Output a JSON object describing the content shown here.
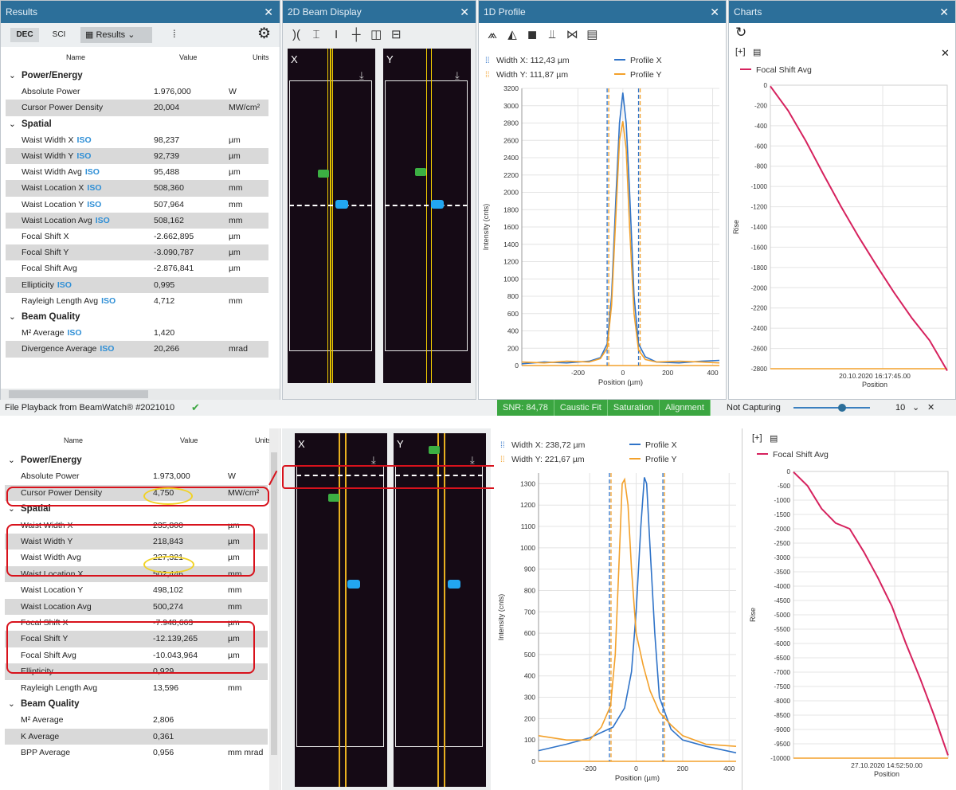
{
  "top": {
    "panels": {
      "results": "Results",
      "beam2d": "2D Beam Display",
      "profile1d": "1D Profile",
      "charts": "Charts"
    },
    "results_toolbar": {
      "dec": "DEC",
      "sci": "SCI",
      "results": "Results"
    },
    "columns": {
      "name": "Name",
      "value": "Value",
      "units": "Units"
    },
    "rows": [
      {
        "type": "section",
        "name": "Power/Energy"
      },
      {
        "type": "row",
        "name": "Absolute Power",
        "value": "1.976,000",
        "unit": "W",
        "iso": false
      },
      {
        "type": "row",
        "name": "Cursor Power Density",
        "value": "20,004",
        "unit": "MW/cm²",
        "iso": false
      },
      {
        "type": "section",
        "name": "Spatial"
      },
      {
        "type": "row",
        "name": "Waist Width X",
        "value": "98,237",
        "unit": "µm",
        "iso": true
      },
      {
        "type": "row",
        "name": "Waist Width Y",
        "value": "92,739",
        "unit": "µm",
        "iso": true
      },
      {
        "type": "row",
        "name": "Waist Width Avg",
        "value": "95,488",
        "unit": "µm",
        "iso": true
      },
      {
        "type": "row",
        "name": "Waist Location X",
        "value": "508,360",
        "unit": "mm",
        "iso": true
      },
      {
        "type": "row",
        "name": "Waist Location Y",
        "value": "507,964",
        "unit": "mm",
        "iso": true
      },
      {
        "type": "row",
        "name": "Waist Location Avg",
        "value": "508,162",
        "unit": "mm",
        "iso": true
      },
      {
        "type": "row",
        "name": "Focal Shift X",
        "value": "-2.662,895",
        "unit": "µm",
        "iso": false
      },
      {
        "type": "row",
        "name": "Focal Shift Y",
        "value": "-3.090,787",
        "unit": "µm",
        "iso": false
      },
      {
        "type": "row",
        "name": "Focal Shift Avg",
        "value": "-2.876,841",
        "unit": "µm",
        "iso": false
      },
      {
        "type": "row",
        "name": "Ellipticity",
        "value": "0,995",
        "unit": "",
        "iso": true
      },
      {
        "type": "row",
        "name": "Rayleigh Length Avg",
        "value": "4,712",
        "unit": "mm",
        "iso": true
      },
      {
        "type": "section",
        "name": "Beam Quality"
      },
      {
        "type": "row",
        "name": "M² Average",
        "value": "1,420",
        "unit": "",
        "iso": true
      },
      {
        "type": "row",
        "name": "Divergence Average",
        "value": "20,266",
        "unit": "mrad",
        "iso": true
      }
    ],
    "iso_label": "ISO",
    "beam_labels": {
      "x": "X",
      "y": "Y"
    },
    "profile_legend": {
      "width_x": "Width X: 112,43 µm",
      "width_y": "Width Y: 111,87 µm",
      "profile_x": "Profile X",
      "profile_y": "Profile Y"
    },
    "profile_axis": {
      "ylabel": "Intensity (cnts)",
      "xlabel": "Position (µm)"
    },
    "charts_legend": "Focal Shift Avg",
    "charts_axis": {
      "ylabel": "Rise",
      "xlabel": "Position",
      "xtick": "20.10.2020 16:17:45.00"
    },
    "status": {
      "left": "File Playback from BeamWatch® #2021010",
      "snr": "SNR: 84,78",
      "caustic": "Caustic Fit",
      "saturation": "Saturation",
      "alignment": "Alignment",
      "capturing": "Not Capturing",
      "count": "10"
    }
  },
  "bottom": {
    "columns": {
      "name": "Name",
      "value": "Value",
      "units": "Units"
    },
    "rows": [
      {
        "type": "section",
        "name": "Power/Energy"
      },
      {
        "type": "row",
        "name": "Absolute Power",
        "value": "1.973,000",
        "unit": "W"
      },
      {
        "type": "row",
        "name": "Cursor Power Density",
        "value": "4,750",
        "unit": "MW/cm²"
      },
      {
        "type": "section",
        "name": "Spatial"
      },
      {
        "type": "row",
        "name": "Waist Width X",
        "value": "235,800",
        "unit": "µm"
      },
      {
        "type": "row",
        "name": "Waist Width Y",
        "value": "218,843",
        "unit": "µm"
      },
      {
        "type": "row",
        "name": "Waist Width Avg",
        "value": "227,321",
        "unit": "µm"
      },
      {
        "type": "row",
        "name": "Waist Location X",
        "value": "502,446",
        "unit": "mm"
      },
      {
        "type": "row",
        "name": "Waist Location Y",
        "value": "498,102",
        "unit": "mm"
      },
      {
        "type": "row",
        "name": "Waist Location Avg",
        "value": "500,274",
        "unit": "mm"
      },
      {
        "type": "row",
        "name": "Focal Shift X",
        "value": "-7.948,663",
        "unit": "µm"
      },
      {
        "type": "row",
        "name": "Focal Shift Y",
        "value": "-12.139,265",
        "unit": "µm"
      },
      {
        "type": "row",
        "name": "Focal Shift Avg",
        "value": "-10.043,964",
        "unit": "µm"
      },
      {
        "type": "row",
        "name": "Ellipticity",
        "value": "0,929",
        "unit": ""
      },
      {
        "type": "row",
        "name": "Rayleigh Length Avg",
        "value": "13,596",
        "unit": "mm"
      },
      {
        "type": "section",
        "name": "Beam Quality"
      },
      {
        "type": "row",
        "name": "M² Average",
        "value": "2,806",
        "unit": ""
      },
      {
        "type": "row",
        "name": "K Average",
        "value": "0,361",
        "unit": ""
      },
      {
        "type": "row",
        "name": "BPP Average",
        "value": "0,956",
        "unit": "mm mrad"
      }
    ],
    "beam_labels": {
      "x": "X",
      "y": "Y"
    },
    "profile_legend": {
      "width_x": "Width X: 238,72 µm",
      "width_y": "Width Y: 221,67 µm",
      "profile_x": "Profile X",
      "profile_y": "Profile Y"
    },
    "profile_axis": {
      "ylabel": "Intensity (cnts)",
      "xlabel": "Position (µm)"
    },
    "charts_legend": "Focal Shift Avg",
    "charts_axis": {
      "ylabel": "Rise",
      "xlabel": "Position",
      "xtick": "27.10.2020 14:52:50.00"
    }
  },
  "chart_data": [
    {
      "type": "line",
      "title": "",
      "xlabel": "Position (µm)",
      "ylabel": "Intensity (cnts)",
      "xlim": [
        -450,
        430
      ],
      "ylim": [
        0,
        3200
      ],
      "xticks": [
        -200,
        0,
        200,
        400
      ],
      "yticks": [
        0,
        200,
        400,
        600,
        800,
        1000,
        1200,
        1400,
        1600,
        1800,
        2000,
        2200,
        2400,
        2600,
        2800,
        3000,
        3200
      ],
      "series": [
        {
          "name": "Profile X",
          "color": "#2f73c8",
          "x": [
            -450,
            -350,
            -250,
            -150,
            -100,
            -70,
            -50,
            -30,
            -15,
            0,
            15,
            30,
            50,
            70,
            100,
            150,
            250,
            350,
            430
          ],
          "y": [
            20,
            40,
            30,
            50,
            90,
            250,
            800,
            2000,
            2800,
            3150,
            2800,
            2000,
            800,
            250,
            100,
            40,
            30,
            50,
            60
          ]
        },
        {
          "name": "Profile Y",
          "color": "#f3a12b",
          "x": [
            -450,
            -350,
            -250,
            -150,
            -100,
            -70,
            -50,
            -30,
            -15,
            0,
            15,
            30,
            50,
            70,
            100,
            150,
            250,
            350,
            430
          ],
          "y": [
            40,
            30,
            50,
            40,
            80,
            200,
            700,
            1800,
            2600,
            2820,
            2500,
            1600,
            600,
            180,
            70,
            40,
            50,
            40,
            30
          ]
        }
      ],
      "width_markers_x": [
        -70,
        70
      ]
    },
    {
      "type": "line",
      "title": "",
      "xlabel": "Position",
      "ylabel": "Rise",
      "ylim": [
        -2800,
        0
      ],
      "yticks": [
        0,
        -200,
        -400,
        -600,
        -800,
        -1000,
        -1200,
        -1400,
        -1600,
        -1800,
        -2000,
        -2200,
        -2400,
        -2600,
        -2800
      ],
      "series": [
        {
          "name": "Focal Shift Avg",
          "color": "#d6225e",
          "x": [
            0,
            1,
            2,
            3,
            4,
            5,
            6,
            7,
            8,
            9,
            10
          ],
          "y": [
            -10,
            -250,
            -550,
            -880,
            -1200,
            -1500,
            -1780,
            -2050,
            -2300,
            -2520,
            -2820
          ]
        }
      ]
    },
    {
      "type": "line",
      "title": "",
      "xlabel": "Position (µm)",
      "ylabel": "Intensity (cnts)",
      "xlim": [
        -420,
        430
      ],
      "ylim": [
        0,
        1350
      ],
      "xticks": [
        -200,
        0,
        200,
        400
      ],
      "yticks": [
        0,
        100,
        200,
        300,
        400,
        500,
        600,
        700,
        800,
        900,
        1000,
        1100,
        1200,
        1300
      ],
      "series": [
        {
          "name": "Profile X",
          "color": "#2f73c8",
          "x": [
            -420,
            -300,
            -200,
            -100,
            -50,
            -20,
            0,
            20,
            35,
            45,
            60,
            80,
            100,
            150,
            200,
            300,
            430
          ],
          "y": [
            50,
            80,
            110,
            160,
            250,
            420,
            700,
            1100,
            1330,
            1300,
            1000,
            600,
            300,
            150,
            100,
            70,
            40
          ]
        },
        {
          "name": "Profile Y",
          "color": "#f3a12b",
          "x": [
            -420,
            -300,
            -200,
            -150,
            -110,
            -90,
            -75,
            -60,
            -50,
            -35,
            -20,
            0,
            30,
            60,
            100,
            150,
            200,
            300,
            430
          ],
          "y": [
            120,
            100,
            100,
            160,
            260,
            500,
            900,
            1300,
            1320,
            1200,
            900,
            600,
            450,
            330,
            230,
            170,
            120,
            80,
            70
          ]
        }
      ],
      "width_markers_x": [
        -115,
        115
      ]
    },
    {
      "type": "line",
      "title": "",
      "xlabel": "Position",
      "ylabel": "Rise",
      "ylim": [
        -10000,
        0
      ],
      "yticks": [
        0,
        -500,
        -1000,
        -1500,
        -2000,
        -2500,
        -3000,
        -3500,
        -4000,
        -4500,
        -5000,
        -5500,
        -6000,
        -6500,
        -7000,
        -7500,
        -8000,
        -8500,
        -9000,
        -9500,
        -10000
      ],
      "series": [
        {
          "name": "Focal Shift Avg",
          "color": "#d6225e",
          "x": [
            0,
            1,
            2,
            3,
            4,
            5,
            6,
            7,
            8,
            9,
            10,
            11
          ],
          "y": [
            -20,
            -500,
            -1300,
            -1800,
            -2000,
            -2800,
            -3700,
            -4700,
            -6000,
            -7200,
            -8500,
            -9900
          ]
        }
      ]
    }
  ]
}
